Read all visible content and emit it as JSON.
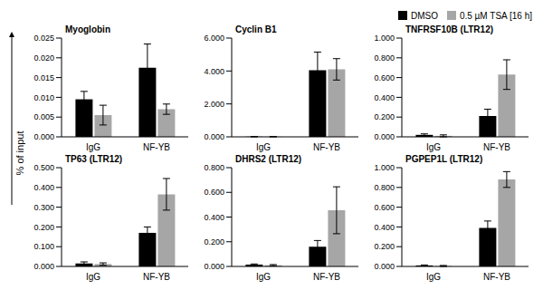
{
  "ylabel": "% of input",
  "legend": "top right",
  "chart_data": [
    {
      "type": "bar",
      "title": "Myoglobin",
      "categories": [
        "IgG",
        "NF-YB"
      ],
      "series": [
        {
          "name": "DMSO",
          "color": "#000000",
          "values": [
            0.0095,
            0.0175
          ],
          "errors": [
            0.002,
            0.006
          ]
        },
        {
          "name": "0.5 µM TSA [16 h]",
          "color": "#a6a6a6",
          "values": [
            0.0055,
            0.007
          ],
          "errors": [
            0.0025,
            0.0013
          ]
        }
      ],
      "ylim": [
        0,
        0.025
      ],
      "yticks": [
        {
          "value": 0,
          "label": "0.000"
        },
        {
          "value": 0.005,
          "label": "0.005"
        },
        {
          "value": 0.01,
          "label": "0.010"
        },
        {
          "value": 0.015,
          "label": "0.015"
        },
        {
          "value": 0.02,
          "label": "0.020"
        },
        {
          "value": 0.025,
          "label": "0.025"
        }
      ]
    },
    {
      "type": "bar",
      "title": "Cyclin B1",
      "categories": [
        "IgG",
        "NF-YB"
      ],
      "series": [
        {
          "name": "DMSO",
          "color": "#000000",
          "values": [
            0.01,
            4.05
          ],
          "errors": [
            0.005,
            1.1
          ]
        },
        {
          "name": "0.5 µM TSA [16 h]",
          "color": "#a6a6a6",
          "values": [
            0.01,
            4.1
          ],
          "errors": [
            0.005,
            0.65
          ]
        }
      ],
      "ylim": [
        0,
        6
      ],
      "yticks": [
        {
          "value": 0,
          "label": "0.000"
        },
        {
          "value": 2,
          "label": "2.000"
        },
        {
          "value": 4,
          "label": "4.000"
        },
        {
          "value": 6,
          "label": "6.000"
        }
      ]
    },
    {
      "type": "bar",
      "title": "TNFRSF10B (LTR12)",
      "categories": [
        "IgG",
        "NF-YB"
      ],
      "series": [
        {
          "name": "DMSO",
          "color": "#000000",
          "values": [
            0.02,
            0.21
          ],
          "errors": [
            0.01,
            0.07
          ]
        },
        {
          "name": "0.5 µM TSA [16 h]",
          "color": "#a6a6a6",
          "values": [
            0.01,
            0.63
          ],
          "errors": [
            0.01,
            0.15
          ]
        }
      ],
      "ylim": [
        0,
        1
      ],
      "yticks": [
        {
          "value": 0,
          "label": "0.000"
        },
        {
          "value": 0.2,
          "label": "0.200"
        },
        {
          "value": 0.4,
          "label": "0.400"
        },
        {
          "value": 0.6,
          "label": "0.600"
        },
        {
          "value": 0.8,
          "label": "0.800"
        },
        {
          "value": 1,
          "label": "1.000"
        }
      ]
    },
    {
      "type": "bar",
      "title": "TP63 (LTR12)",
      "categories": [
        "IgG",
        "NF-YB"
      ],
      "series": [
        {
          "name": "DMSO",
          "color": "#000000",
          "values": [
            0.015,
            0.17
          ],
          "errors": [
            0.008,
            0.03
          ]
        },
        {
          "name": "0.5 µM TSA [16 h]",
          "color": "#a6a6a6",
          "values": [
            0.012,
            0.365
          ],
          "errors": [
            0.006,
            0.08
          ]
        }
      ],
      "ylim": [
        0,
        0.5
      ],
      "yticks": [
        {
          "value": 0,
          "label": "0.000"
        },
        {
          "value": 0.1,
          "label": "0.100"
        },
        {
          "value": 0.2,
          "label": "0.200"
        },
        {
          "value": 0.3,
          "label": "0.300"
        },
        {
          "value": 0.4,
          "label": "0.400"
        },
        {
          "value": 0.5,
          "label": "0.500"
        }
      ]
    },
    {
      "type": "bar",
      "title": "DHRS2 (LTR12)",
      "categories": [
        "IgG",
        "NF-YB"
      ],
      "series": [
        {
          "name": "DMSO",
          "color": "#000000",
          "values": [
            0.015,
            0.16
          ],
          "errors": [
            0.005,
            0.05
          ]
        },
        {
          "name": "0.5 µM TSA [16 h]",
          "color": "#a6a6a6",
          "values": [
            0.01,
            0.455
          ],
          "errors": [
            0.005,
            0.19
          ]
        }
      ],
      "ylim": [
        0,
        0.8
      ],
      "yticks": [
        {
          "value": 0,
          "label": "0.000"
        },
        {
          "value": 0.2,
          "label": "0.200"
        },
        {
          "value": 0.4,
          "label": "0.400"
        },
        {
          "value": 0.6,
          "label": "0.600"
        },
        {
          "value": 0.8,
          "label": "0.800"
        }
      ]
    },
    {
      "type": "bar",
      "title": "PGPEP1L (LTR12)",
      "categories": [
        "IgG",
        "NF-YB"
      ],
      "series": [
        {
          "name": "DMSO",
          "color": "#000000",
          "values": [
            0.01,
            0.39
          ],
          "errors": [
            0.005,
            0.07
          ]
        },
        {
          "name": "0.5 µM TSA [16 h]",
          "color": "#a6a6a6",
          "values": [
            0.005,
            0.88
          ],
          "errors": [
            0.005,
            0.08
          ]
        }
      ],
      "ylim": [
        0,
        1
      ],
      "yticks": [
        {
          "value": 0,
          "label": "0.000"
        },
        {
          "value": 0.2,
          "label": "0.200"
        },
        {
          "value": 0.4,
          "label": "0.400"
        },
        {
          "value": 0.6,
          "label": "0.600"
        },
        {
          "value": 0.8,
          "label": "0.800"
        },
        {
          "value": 1,
          "label": "1.000"
        }
      ]
    }
  ]
}
